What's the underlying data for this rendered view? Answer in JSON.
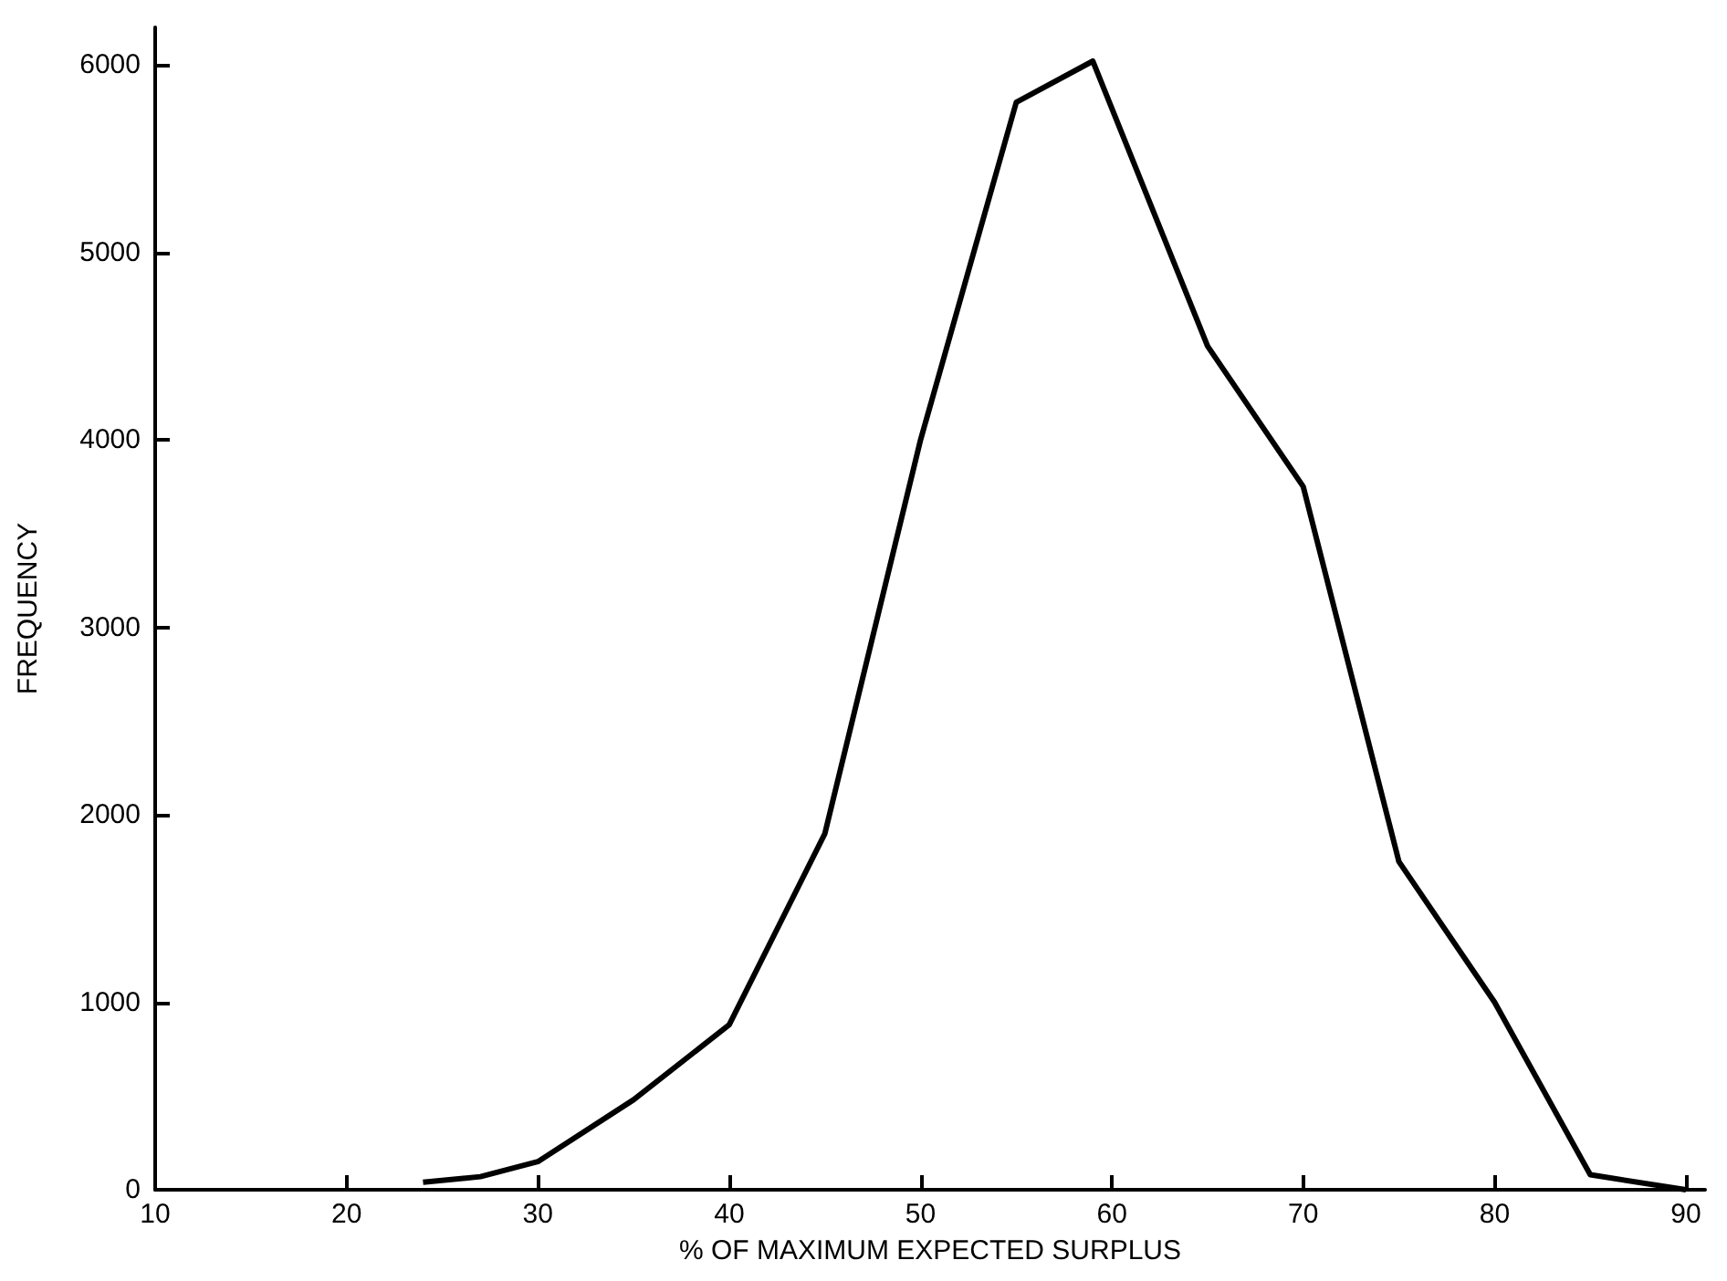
{
  "chart_data": {
    "type": "line",
    "xlabel": "% OF MAXIMUM EXPECTED SURPLUS",
    "ylabel": "FREQUENCY",
    "x": [
      24,
      27,
      30,
      35,
      40,
      45,
      50,
      55,
      59,
      65,
      70,
      75,
      80,
      85,
      90
    ],
    "series": [
      {
        "color": "#000000",
        "values": [
          40,
          70,
          150,
          480,
          880,
          1900,
          4000,
          5800,
          6020,
          4500,
          3750,
          1750,
          1000,
          80,
          0
        ]
      }
    ],
    "xlim": [
      10,
      91
    ],
    "xticks": [
      10,
      20,
      30,
      40,
      50,
      60,
      70,
      80,
      90
    ],
    "ylim": [
      0,
      6200
    ],
    "yticks": [
      0,
      1000,
      2000,
      3000,
      4000,
      5000,
      6000
    ],
    "grid": false,
    "marker": "none",
    "line_style": "solid"
  }
}
